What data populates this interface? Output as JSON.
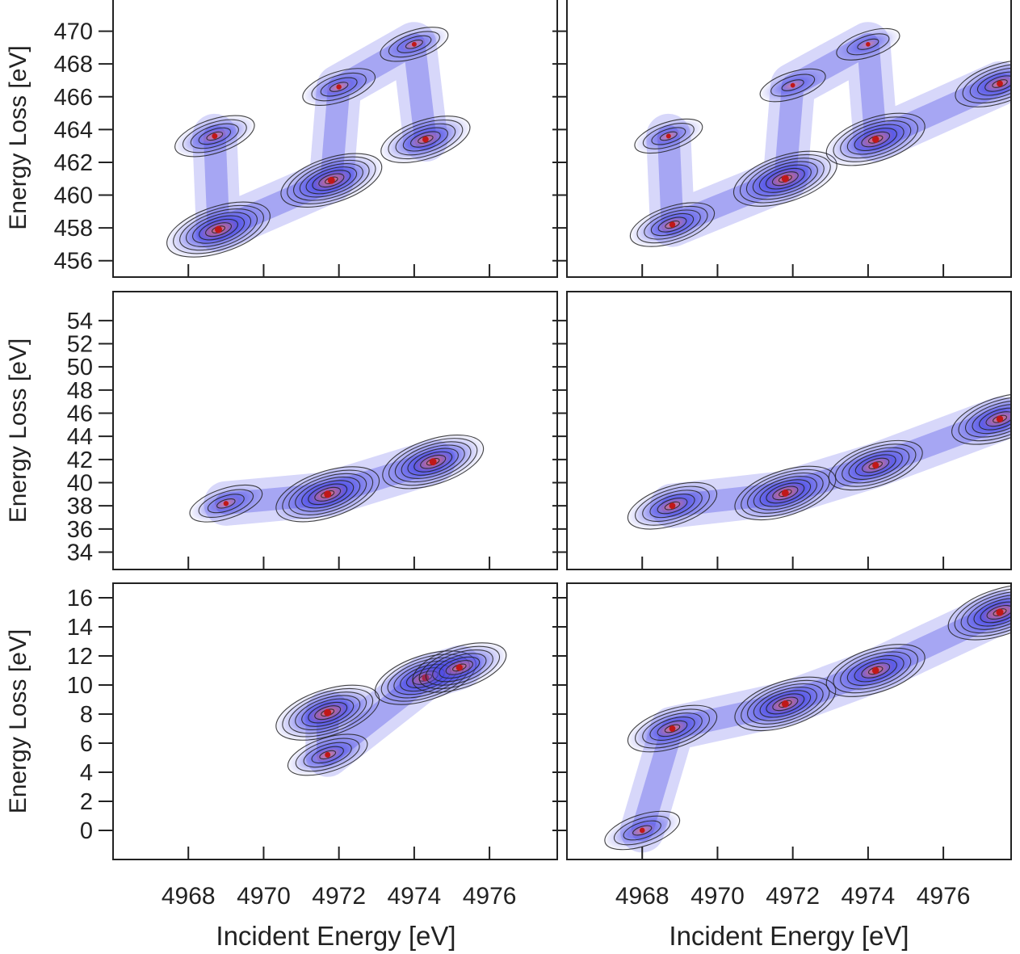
{
  "figure": {
    "x_axis_label": "Incident Energy [eV]",
    "colors": {
      "low": "#ffffff",
      "mid": "#4a4ae6",
      "high": "#f07070",
      "peak": "#c01818",
      "contour": "#222222",
      "frame": "#222222"
    }
  },
  "chart_data": [
    {
      "type": "heatmap",
      "row": 1,
      "col": 1,
      "ylabel": "Energy Loss [eV]",
      "xlim": [
        4966.0,
        4977.8
      ],
      "ylim": [
        455.0,
        472.0
      ],
      "xticks": [
        4968,
        4970,
        4972,
        4974,
        4976
      ],
      "xtick_labels_shown": false,
      "yticks": [
        456,
        458,
        460,
        462,
        464,
        466,
        468,
        470
      ],
      "peaks": [
        {
          "x": 4968.8,
          "y": 457.9,
          "intensity": 1.0
        },
        {
          "x": 4968.7,
          "y": 463.6,
          "intensity": 0.5
        },
        {
          "x": 4971.8,
          "y": 460.9,
          "intensity": 0.95
        },
        {
          "x": 4974.3,
          "y": 463.4,
          "intensity": 0.7
        },
        {
          "x": 4972.0,
          "y": 466.6,
          "intensity": 0.35
        },
        {
          "x": 4974.0,
          "y": 469.2,
          "intensity": 0.25
        }
      ]
    },
    {
      "type": "heatmap",
      "row": 1,
      "col": 2,
      "ylabel": "",
      "xlim": [
        4966.0,
        4977.8
      ],
      "ylim": [
        455.0,
        472.0
      ],
      "xticks": [
        4968,
        4970,
        4972,
        4974,
        4976
      ],
      "xtick_labels_shown": false,
      "yticks": [
        456,
        458,
        460,
        462,
        464,
        466,
        468,
        470
      ],
      "ytick_labels_shown": false,
      "peaks": [
        {
          "x": 4968.8,
          "y": 458.2,
          "intensity": 0.6
        },
        {
          "x": 4968.7,
          "y": 463.6,
          "intensity": 0.25
        },
        {
          "x": 4971.8,
          "y": 461.0,
          "intensity": 1.0
        },
        {
          "x": 4974.2,
          "y": 463.4,
          "intensity": 0.9
        },
        {
          "x": 4977.5,
          "y": 466.8,
          "intensity": 0.7
        },
        {
          "x": 4972.0,
          "y": 466.7,
          "intensity": 0.2
        },
        {
          "x": 4974.0,
          "y": 469.2,
          "intensity": 0.15
        }
      ]
    },
    {
      "type": "heatmap",
      "row": 2,
      "col": 1,
      "ylabel": "Energy Loss [eV]",
      "xlim": [
        4966.0,
        4977.8
      ],
      "ylim": [
        32.5,
        56.5
      ],
      "xticks": [
        4968,
        4970,
        4972,
        4974,
        4976
      ],
      "xtick_labels_shown": false,
      "yticks": [
        34,
        36,
        38,
        40,
        42,
        44,
        46,
        48,
        50,
        52,
        54
      ],
      "peaks": [
        {
          "x": 4971.7,
          "y": 39.0,
          "intensity": 1.0
        },
        {
          "x": 4974.5,
          "y": 41.8,
          "intensity": 0.95
        },
        {
          "x": 4969.0,
          "y": 38.2,
          "intensity": 0.35
        }
      ]
    },
    {
      "type": "heatmap",
      "row": 2,
      "col": 2,
      "ylabel": "",
      "xlim": [
        4966.0,
        4977.8
      ],
      "ylim": [
        32.5,
        56.5
      ],
      "xticks": [
        4968,
        4970,
        4972,
        4974,
        4976
      ],
      "xtick_labels_shown": false,
      "yticks": [
        34,
        36,
        38,
        40,
        42,
        44,
        46,
        48,
        50,
        52,
        54
      ],
      "ytick_labels_shown": false,
      "peaks": [
        {
          "x": 4968.8,
          "y": 38.0,
          "intensity": 0.7
        },
        {
          "x": 4971.8,
          "y": 39.1,
          "intensity": 0.95
        },
        {
          "x": 4974.2,
          "y": 41.5,
          "intensity": 0.8
        },
        {
          "x": 4977.5,
          "y": 45.5,
          "intensity": 0.85
        }
      ]
    },
    {
      "type": "heatmap",
      "row": 3,
      "col": 1,
      "ylabel": "Energy Loss [eV]",
      "xlim": [
        4966.0,
        4977.8
      ],
      "ylim": [
        -2.0,
        17.0
      ],
      "xticks": [
        4968,
        4970,
        4972,
        4974,
        4976
      ],
      "xtick_labels": [
        "4968",
        "4970",
        "4972",
        "4974",
        "4976"
      ],
      "yticks": [
        0,
        2,
        4,
        6,
        8,
        10,
        12,
        14,
        16
      ],
      "xlabel": "Incident Energy [eV]",
      "peaks": [
        {
          "x": 4971.7,
          "y": 8.1,
          "intensity": 1.0
        },
        {
          "x": 4974.3,
          "y": 10.5,
          "intensity": 0.95
        },
        {
          "x": 4975.2,
          "y": 11.2,
          "intensity": 0.8
        },
        {
          "x": 4971.7,
          "y": 5.2,
          "intensity": 0.5
        }
      ]
    },
    {
      "type": "heatmap",
      "row": 3,
      "col": 2,
      "ylabel": "",
      "xlim": [
        4966.0,
        4977.8
      ],
      "ylim": [
        -2.0,
        17.0
      ],
      "xticks": [
        4968,
        4970,
        4972,
        4974,
        4976
      ],
      "xtick_labels": [
        "4968",
        "4970",
        "4972",
        "4974",
        "4976"
      ],
      "yticks": [
        0,
        2,
        4,
        6,
        8,
        10,
        12,
        14,
        16
      ],
      "ytick_labels_shown": false,
      "xlabel": "Incident Energy [eV]",
      "peaks": [
        {
          "x": 4968.8,
          "y": 7.0,
          "intensity": 0.7
        },
        {
          "x": 4971.8,
          "y": 8.7,
          "intensity": 0.95
        },
        {
          "x": 4974.2,
          "y": 11.0,
          "intensity": 0.9
        },
        {
          "x": 4977.5,
          "y": 15.0,
          "intensity": 1.0
        },
        {
          "x": 4968.0,
          "y": 0.0,
          "intensity": 0.4
        }
      ]
    }
  ]
}
